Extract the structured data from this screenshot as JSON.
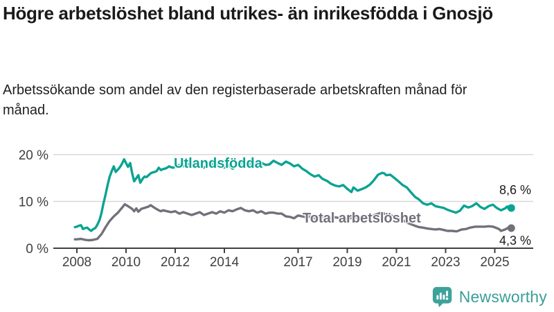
{
  "header": {
    "title": "Högre arbetslöshet bland utrikes- än inrikesfödda i Gnosjö",
    "subtitle": "Arbetssökande som andel av den registerbaserade arbetskraften månad för månad."
  },
  "chart_data": {
    "type": "line",
    "title": "Högre arbetslöshet bland utrikes- än inrikesfödda i Gnosjö",
    "subtitle": "Arbetssökande som andel av den registerbaserade arbetskraften månad för månad.",
    "unit": "%",
    "grid": true,
    "x_axis": {
      "range": [
        2007.75,
        2026.2
      ],
      "ticks": [
        2008,
        2010,
        2012,
        2014,
        2017,
        2019,
        2021,
        2023,
        2025
      ],
      "tick_labels": [
        "2008",
        "2010",
        "2012",
        "2014",
        "2017",
        "2019",
        "2021",
        "2023",
        "2025"
      ]
    },
    "y_axis": {
      "range": [
        0,
        21.5
      ],
      "ticks": [
        0,
        10,
        20
      ],
      "tick_labels": [
        "0 %",
        "10 %",
        "20 %"
      ]
    },
    "series": [
      {
        "name": "Utlandsfödda",
        "color": "#0aa392",
        "end_label": "8,6 %",
        "end_value": 8.6,
        "points": [
          [
            2007.92,
            4.5
          ],
          [
            2008.0,
            4.6
          ],
          [
            2008.08,
            4.8
          ],
          [
            2008.17,
            4.9
          ],
          [
            2008.25,
            4.1
          ],
          [
            2008.33,
            4.3
          ],
          [
            2008.42,
            4.4
          ],
          [
            2008.5,
            4.0
          ],
          [
            2008.58,
            3.7
          ],
          [
            2008.67,
            4.1
          ],
          [
            2008.75,
            4.3
          ],
          [
            2008.83,
            5.0
          ],
          [
            2008.92,
            6.0
          ],
          [
            2009.0,
            7.5
          ],
          [
            2009.08,
            9.5
          ],
          [
            2009.17,
            11.5
          ],
          [
            2009.25,
            13.5
          ],
          [
            2009.33,
            15.2
          ],
          [
            2009.42,
            16.5
          ],
          [
            2009.5,
            17.5
          ],
          [
            2009.58,
            16.3
          ],
          [
            2009.67,
            16.8
          ],
          [
            2009.75,
            17.3
          ],
          [
            2009.83,
            18.0
          ],
          [
            2009.92,
            19.0
          ],
          [
            2010.0,
            18.2
          ],
          [
            2010.08,
            17.4
          ],
          [
            2010.17,
            18.2
          ],
          [
            2010.25,
            16.0
          ],
          [
            2010.33,
            14.3
          ],
          [
            2010.42,
            15.0
          ],
          [
            2010.5,
            15.6
          ],
          [
            2010.58,
            14.0
          ],
          [
            2010.67,
            14.8
          ],
          [
            2010.75,
            15.3
          ],
          [
            2010.83,
            15.2
          ],
          [
            2010.92,
            15.6
          ],
          [
            2011.0,
            16.0
          ],
          [
            2011.08,
            16.2
          ],
          [
            2011.17,
            16.3
          ],
          [
            2011.25,
            16.5
          ],
          [
            2011.33,
            17.2
          ],
          [
            2011.42,
            16.7
          ],
          [
            2011.5,
            16.9
          ],
          [
            2011.58,
            17.0
          ],
          [
            2011.67,
            17.2
          ],
          [
            2011.75,
            17.5
          ],
          [
            2011.83,
            17.3
          ],
          [
            2011.92,
            17.2
          ],
          [
            2012.0,
            17.4
          ],
          [
            2012.17,
            17.8
          ],
          [
            2012.33,
            17.5
          ],
          [
            2012.5,
            18.0
          ],
          [
            2012.67,
            17.6
          ],
          [
            2012.83,
            17.8
          ],
          [
            2013.0,
            17.5
          ],
          [
            2013.17,
            17.2
          ],
          [
            2013.33,
            17.8
          ],
          [
            2013.5,
            18.0
          ],
          [
            2013.67,
            17.6
          ],
          [
            2013.83,
            18.2
          ],
          [
            2014.0,
            17.2
          ],
          [
            2014.17,
            17.8
          ],
          [
            2014.33,
            17.0
          ],
          [
            2014.5,
            17.6
          ],
          [
            2014.67,
            18.4
          ],
          [
            2014.83,
            17.8
          ],
          [
            2015.0,
            18.2
          ],
          [
            2015.17,
            17.5
          ],
          [
            2015.33,
            17.8
          ],
          [
            2015.5,
            18.3
          ],
          [
            2015.67,
            17.8
          ],
          [
            2015.83,
            17.9
          ],
          [
            2016.0,
            18.7
          ],
          [
            2016.17,
            18.2
          ],
          [
            2016.33,
            17.8
          ],
          [
            2016.5,
            18.5
          ],
          [
            2016.67,
            18.1
          ],
          [
            2016.83,
            17.5
          ],
          [
            2017.0,
            17.8
          ],
          [
            2017.17,
            17.0
          ],
          [
            2017.33,
            16.5
          ],
          [
            2017.5,
            15.8
          ],
          [
            2017.67,
            15.3
          ],
          [
            2017.83,
            15.6
          ],
          [
            2018.0,
            14.8
          ],
          [
            2018.17,
            14.4
          ],
          [
            2018.33,
            13.8
          ],
          [
            2018.5,
            13.4
          ],
          [
            2018.67,
            13.2
          ],
          [
            2018.83,
            13.5
          ],
          [
            2019.0,
            12.7
          ],
          [
            2019.17,
            12.0
          ],
          [
            2019.25,
            13.0
          ],
          [
            2019.42,
            12.3
          ],
          [
            2019.58,
            12.6
          ],
          [
            2019.75,
            13.0
          ],
          [
            2019.92,
            13.6
          ],
          [
            2020.08,
            14.5
          ],
          [
            2020.25,
            15.7
          ],
          [
            2020.42,
            16.1
          ],
          [
            2020.5,
            16.0
          ],
          [
            2020.58,
            15.6
          ],
          [
            2020.75,
            15.7
          ],
          [
            2020.92,
            15.0
          ],
          [
            2021.08,
            14.3
          ],
          [
            2021.25,
            13.5
          ],
          [
            2021.42,
            13.0
          ],
          [
            2021.58,
            12.0
          ],
          [
            2021.75,
            11.0
          ],
          [
            2021.92,
            10.4
          ],
          [
            2022.08,
            9.6
          ],
          [
            2022.25,
            9.3
          ],
          [
            2022.42,
            9.6
          ],
          [
            2022.58,
            9.0
          ],
          [
            2022.75,
            8.8
          ],
          [
            2022.92,
            8.6
          ],
          [
            2023.08,
            8.2
          ],
          [
            2023.25,
            7.9
          ],
          [
            2023.42,
            7.6
          ],
          [
            2023.58,
            8.0
          ],
          [
            2023.75,
            9.1
          ],
          [
            2023.92,
            8.7
          ],
          [
            2024.08,
            9.0
          ],
          [
            2024.25,
            9.6
          ],
          [
            2024.42,
            8.8
          ],
          [
            2024.58,
            8.4
          ],
          [
            2024.75,
            9.0
          ],
          [
            2024.92,
            9.3
          ],
          [
            2025.08,
            8.6
          ],
          [
            2025.25,
            8.1
          ],
          [
            2025.42,
            8.5
          ],
          [
            2025.5,
            8.9
          ],
          [
            2025.58,
            8.3
          ],
          [
            2025.67,
            8.6
          ]
        ]
      },
      {
        "name": "Total arbetslöshet",
        "color": "#72707a",
        "end_label": "4,3 %",
        "end_value": 4.3,
        "points": [
          [
            2007.92,
            1.9
          ],
          [
            2008.0,
            1.9
          ],
          [
            2008.17,
            2.0
          ],
          [
            2008.33,
            1.8
          ],
          [
            2008.5,
            1.7
          ],
          [
            2008.67,
            1.8
          ],
          [
            2008.83,
            2.0
          ],
          [
            2009.0,
            3.0
          ],
          [
            2009.17,
            4.5
          ],
          [
            2009.33,
            5.8
          ],
          [
            2009.5,
            6.8
          ],
          [
            2009.67,
            7.6
          ],
          [
            2009.83,
            8.6
          ],
          [
            2009.95,
            9.4
          ],
          [
            2010.08,
            9.0
          ],
          [
            2010.25,
            8.4
          ],
          [
            2010.33,
            7.9
          ],
          [
            2010.42,
            8.5
          ],
          [
            2010.5,
            7.8
          ],
          [
            2010.62,
            8.4
          ],
          [
            2010.75,
            8.6
          ],
          [
            2010.92,
            8.9
          ],
          [
            2011.0,
            9.2
          ],
          [
            2011.17,
            8.6
          ],
          [
            2011.33,
            8.1
          ],
          [
            2011.42,
            7.9
          ],
          [
            2011.5,
            8.1
          ],
          [
            2011.67,
            7.9
          ],
          [
            2011.83,
            7.7
          ],
          [
            2012.0,
            7.9
          ],
          [
            2012.17,
            7.4
          ],
          [
            2012.33,
            7.7
          ],
          [
            2012.5,
            7.4
          ],
          [
            2012.67,
            7.1
          ],
          [
            2012.83,
            7.4
          ],
          [
            2013.0,
            7.7
          ],
          [
            2013.17,
            7.1
          ],
          [
            2013.33,
            7.4
          ],
          [
            2013.5,
            7.7
          ],
          [
            2013.67,
            7.4
          ],
          [
            2013.83,
            7.9
          ],
          [
            2014.0,
            7.6
          ],
          [
            2014.17,
            8.1
          ],
          [
            2014.33,
            7.9
          ],
          [
            2014.5,
            8.3
          ],
          [
            2014.67,
            8.6
          ],
          [
            2014.83,
            8.1
          ],
          [
            2015.0,
            7.9
          ],
          [
            2015.17,
            8.1
          ],
          [
            2015.33,
            7.6
          ],
          [
            2015.5,
            7.9
          ],
          [
            2015.67,
            7.4
          ],
          [
            2015.83,
            7.6
          ],
          [
            2016.0,
            7.6
          ],
          [
            2016.17,
            7.4
          ],
          [
            2016.33,
            7.4
          ],
          [
            2016.5,
            6.8
          ],
          [
            2016.67,
            6.7
          ],
          [
            2016.83,
            6.4
          ],
          [
            2017.0,
            7.0
          ],
          [
            2017.17,
            6.8
          ],
          [
            2017.33,
            6.6
          ],
          [
            2017.5,
            6.8
          ],
          [
            2017.67,
            6.4
          ],
          [
            2017.83,
            6.6
          ],
          [
            2018.0,
            6.7
          ],
          [
            2018.25,
            6.5
          ],
          [
            2018.5,
            6.6
          ],
          [
            2018.75,
            6.4
          ],
          [
            2019.0,
            6.3
          ],
          [
            2019.25,
            6.5
          ],
          [
            2019.5,
            6.6
          ],
          [
            2019.75,
            6.8
          ],
          [
            2020.0,
            6.9
          ],
          [
            2020.17,
            7.2
          ],
          [
            2020.33,
            7.5
          ],
          [
            2020.5,
            7.4
          ],
          [
            2020.67,
            7.2
          ],
          [
            2020.83,
            6.9
          ],
          [
            2021.0,
            6.5
          ],
          [
            2021.25,
            6.0
          ],
          [
            2021.5,
            5.3
          ],
          [
            2021.75,
            4.8
          ],
          [
            2021.92,
            4.5
          ],
          [
            2022.08,
            4.4
          ],
          [
            2022.25,
            4.2
          ],
          [
            2022.42,
            4.1
          ],
          [
            2022.58,
            4.0
          ],
          [
            2022.75,
            4.1
          ],
          [
            2022.92,
            3.9
          ],
          [
            2023.08,
            3.7
          ],
          [
            2023.25,
            3.7
          ],
          [
            2023.45,
            3.6
          ],
          [
            2023.65,
            4.0
          ],
          [
            2023.83,
            4.1
          ],
          [
            2024.0,
            4.4
          ],
          [
            2024.2,
            4.6
          ],
          [
            2024.4,
            4.6
          ],
          [
            2024.6,
            4.6
          ],
          [
            2024.75,
            4.7
          ],
          [
            2024.92,
            4.6
          ],
          [
            2025.08,
            4.3
          ],
          [
            2025.17,
            4.1
          ],
          [
            2025.25,
            3.7
          ],
          [
            2025.42,
            4.0
          ],
          [
            2025.55,
            4.4
          ],
          [
            2025.67,
            4.3
          ]
        ]
      }
    ],
    "colors": {
      "grid": "#d8d8d8",
      "axis": "#404040",
      "end_label_text": "#1a1a1a"
    }
  },
  "footer": {
    "brand": "Newsworthy",
    "brand_color": "#3b9e98",
    "logo_icon": "bar-chart-speech-bubble-icon"
  }
}
